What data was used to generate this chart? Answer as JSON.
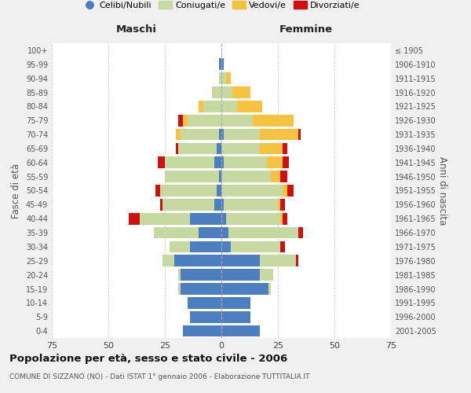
{
  "age_groups": [
    "0-4",
    "5-9",
    "10-14",
    "15-19",
    "20-24",
    "25-29",
    "30-34",
    "35-39",
    "40-44",
    "45-49",
    "50-54",
    "55-59",
    "60-64",
    "65-69",
    "70-74",
    "75-79",
    "80-84",
    "85-89",
    "90-94",
    "95-99",
    "100+"
  ],
  "birth_years": [
    "2001-2005",
    "1996-2000",
    "1991-1995",
    "1986-1990",
    "1981-1985",
    "1976-1980",
    "1971-1975",
    "1966-1970",
    "1961-1965",
    "1956-1960",
    "1951-1955",
    "1946-1950",
    "1941-1945",
    "1936-1940",
    "1931-1935",
    "1926-1930",
    "1921-1925",
    "1916-1920",
    "1911-1915",
    "1906-1910",
    "≤ 1905"
  ],
  "colors": {
    "single": "#4d7ebf",
    "married": "#c5d9a0",
    "widowed": "#f5c242",
    "divorced": "#cc1111"
  },
  "male": {
    "single": [
      17,
      14,
      15,
      18,
      18,
      21,
      14,
      10,
      14,
      3,
      2,
      1,
      3,
      2,
      1,
      0,
      0,
      0,
      0,
      1,
      0
    ],
    "married": [
      0,
      0,
      0,
      1,
      1,
      5,
      9,
      20,
      22,
      23,
      25,
      24,
      22,
      17,
      17,
      15,
      8,
      4,
      1,
      0,
      0
    ],
    "widowed": [
      0,
      0,
      0,
      0,
      0,
      0,
      0,
      0,
      0,
      0,
      0,
      0,
      0,
      0,
      2,
      2,
      2,
      0,
      0,
      0,
      0
    ],
    "divorced": [
      0,
      0,
      0,
      0,
      0,
      0,
      0,
      0,
      5,
      1,
      2,
      0,
      3,
      1,
      0,
      2,
      0,
      0,
      0,
      0,
      0
    ]
  },
  "female": {
    "single": [
      17,
      13,
      13,
      21,
      17,
      17,
      4,
      3,
      2,
      1,
      0,
      0,
      1,
      0,
      1,
      0,
      0,
      0,
      0,
      1,
      0
    ],
    "married": [
      0,
      0,
      0,
      1,
      6,
      16,
      22,
      31,
      24,
      24,
      27,
      22,
      19,
      17,
      16,
      14,
      7,
      5,
      2,
      0,
      0
    ],
    "widowed": [
      0,
      0,
      0,
      0,
      0,
      0,
      0,
      0,
      1,
      1,
      2,
      4,
      7,
      10,
      17,
      18,
      11,
      8,
      2,
      0,
      0
    ],
    "divorced": [
      0,
      0,
      0,
      0,
      0,
      1,
      2,
      2,
      2,
      2,
      3,
      3,
      3,
      2,
      1,
      0,
      0,
      0,
      0,
      0,
      0
    ]
  },
  "title": "Popolazione per età, sesso e stato civile - 2006",
  "subtitle": "COMUNE DI SIZZANO (NO) - Dati ISTAT 1° gennaio 2006 - Elaborazione TUTTITALIA.IT",
  "xlabel_left": "Maschi",
  "xlabel_right": "Femmine",
  "ylabel_left": "Fasce di età",
  "ylabel_right": "Anni di nascita",
  "legend_labels": [
    "Celibi/Nubili",
    "Coniugati/e",
    "Vedovi/e",
    "Divorziati/e"
  ],
  "xlim": 75,
  "bg_color": "#f0f0f0",
  "plot_bg_color": "#ffffff"
}
